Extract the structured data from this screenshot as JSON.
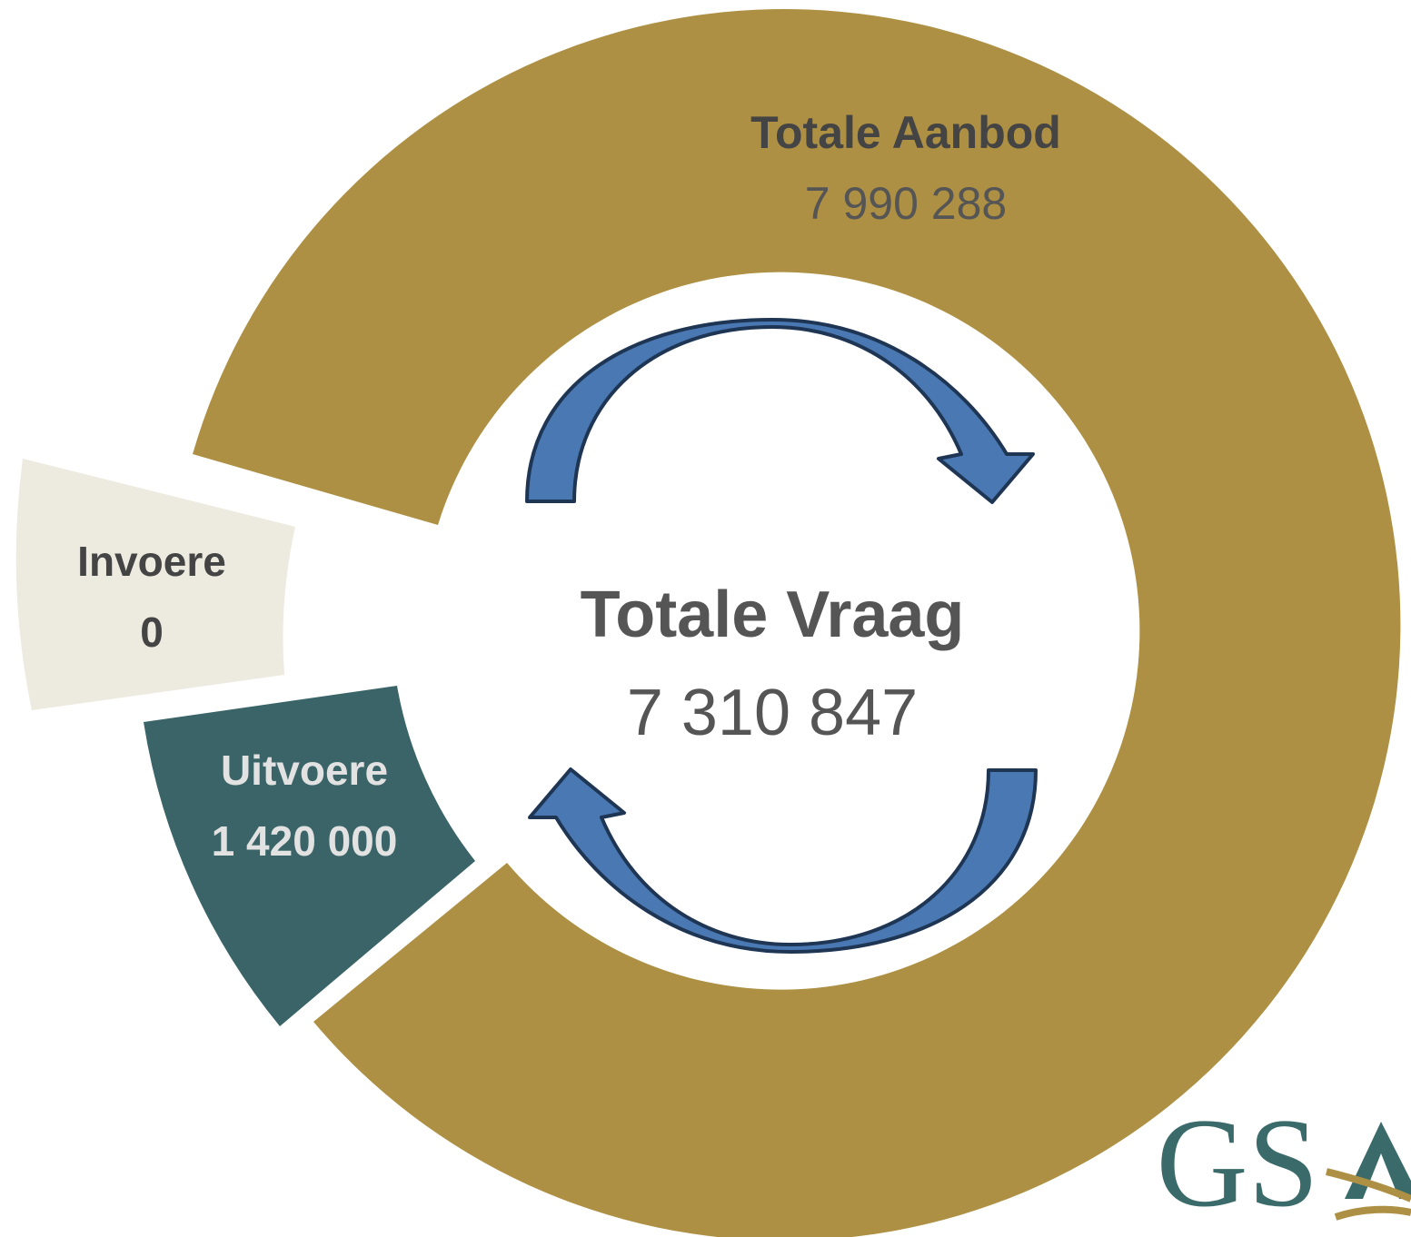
{
  "segments": [
    {
      "label": "Totale Aanbod",
      "value": "7 990 288"
    },
    {
      "label": "Invoere",
      "value": "0"
    },
    {
      "label": "Uitvoere",
      "value": "1 420 000"
    }
  ],
  "center": {
    "label": "Totale Vraag",
    "value": "7 310 847"
  },
  "logo": {
    "text": "GS"
  }
}
